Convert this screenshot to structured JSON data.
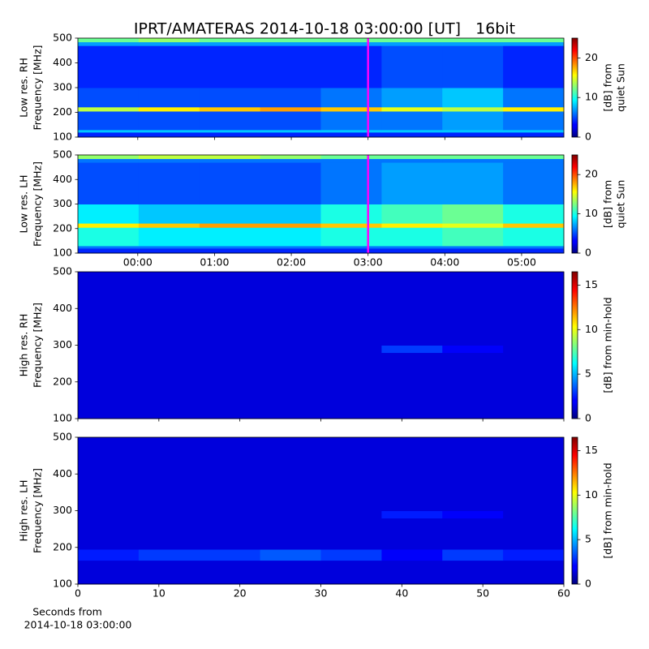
{
  "title": "IPRT/AMATERAS 2014-10-18 03:00:00 [UT]   16bit",
  "chart_data": [
    {
      "type": "heatmap",
      "ylabel": [
        "Low res. RH",
        "Frequency [MHz]"
      ],
      "xlim": [
        -0.78,
        5.55
      ],
      "xticks": [
        0,
        1,
        2,
        3,
        4,
        5
      ],
      "xtick_labels": false,
      "ylim": [
        100,
        500
      ],
      "yticks": [
        100,
        200,
        300,
        400,
        500
      ],
      "y_edges": [
        100,
        120,
        130,
        205,
        222,
        300,
        470,
        485,
        500
      ],
      "z": [
        [
          4,
          4,
          4,
          4,
          4,
          4,
          4,
          4
        ],
        [
          8,
          8,
          8,
          8,
          8,
          8,
          8,
          8
        ],
        [
          5,
          5,
          5,
          5,
          6,
          6,
          7,
          6
        ],
        [
          14,
          16,
          17,
          18,
          17,
          15,
          14,
          16
        ],
        [
          5,
          5,
          5,
          5,
          6,
          7,
          8,
          6
        ],
        [
          4,
          4,
          4,
          4,
          4,
          5,
          5,
          4
        ],
        [
          7,
          7,
          7,
          7,
          7,
          7,
          7,
          7
        ],
        [
          12,
          13,
          12,
          12,
          12,
          12,
          12,
          12
        ]
      ],
      "colormap": "jet",
      "clim": [
        0,
        25
      ],
      "cticks": [
        0,
        10,
        20
      ],
      "clabel": [
        "[dB] from",
        "quiet Sun"
      ],
      "marker_x": 3,
      "marker_color": "#ff00ff"
    },
    {
      "type": "heatmap",
      "ylabel": [
        "Low res. LH",
        "Frequency [MHz]"
      ],
      "xlim": [
        -0.78,
        5.55
      ],
      "xticks": [
        {
          "value": 0,
          "label": "00:00"
        },
        {
          "value": 1,
          "label": "01:00"
        },
        {
          "value": 2,
          "label": "02:00"
        },
        {
          "value": 3,
          "label": "03:00"
        },
        {
          "value": 4,
          "label": "04:00"
        },
        {
          "value": 5,
          "label": "05:00"
        }
      ],
      "ylim": [
        100,
        500
      ],
      "yticks": [
        100,
        200,
        300,
        400,
        500
      ],
      "y_edges": [
        100,
        120,
        130,
        205,
        222,
        300,
        470,
        485,
        500
      ],
      "z": [
        [
          4,
          4,
          4,
          4,
          4,
          4,
          4,
          4
        ],
        [
          6,
          6,
          6,
          6,
          6,
          6,
          6,
          6
        ],
        [
          10,
          9,
          9,
          9,
          10,
          10,
          11,
          10
        ],
        [
          16,
          17,
          18,
          18,
          17,
          16,
          15,
          17
        ],
        [
          9,
          8,
          8,
          8,
          10,
          11,
          12,
          10
        ],
        [
          5,
          5,
          5,
          5,
          6,
          7,
          7,
          6
        ],
        [
          6,
          6,
          6,
          6,
          6,
          6,
          6,
          6
        ],
        [
          13,
          14,
          14,
          13,
          12,
          12,
          12,
          12
        ]
      ],
      "colormap": "jet",
      "clim": [
        0,
        25
      ],
      "cticks": [
        0,
        10,
        20
      ],
      "clabel": [
        "[dB] from",
        "quiet Sun"
      ],
      "marker_x": 3,
      "marker_color": "#ff00ff"
    },
    {
      "type": "heatmap",
      "ylabel": [
        "High res. RH",
        "Frequency [MHz]"
      ],
      "xlim": [
        0,
        60
      ],
      "xticks": [
        0,
        10,
        20,
        30,
        40,
        50,
        60
      ],
      "xtick_labels": false,
      "ylim": [
        100,
        500
      ],
      "yticks": [
        100,
        200,
        300,
        400,
        500
      ],
      "y_edges": [
        100,
        280,
        300,
        500
      ],
      "z": [
        [
          1.5,
          1.5,
          1.5,
          1.5,
          1.5,
          1.5,
          1.5,
          1.5
        ],
        [
          1.5,
          1.5,
          1.5,
          1.5,
          1.5,
          3,
          2,
          1.5
        ],
        [
          1.5,
          1.5,
          1.5,
          1.5,
          1.5,
          1.5,
          1.5,
          1.5
        ]
      ],
      "colormap": "jet",
      "clim": [
        0,
        16.5
      ],
      "cticks": [
        0,
        5,
        10,
        15
      ],
      "clabel": [
        "[dB] from min-hold"
      ]
    },
    {
      "type": "heatmap",
      "ylabel": [
        "High res. LH",
        "Frequency [MHz]"
      ],
      "xlim": [
        0,
        60
      ],
      "xticks": [
        0,
        10,
        20,
        30,
        40,
        50,
        60
      ],
      "xlabel": [
        "Seconds from",
        "2014-10-18 03:00:00"
      ],
      "ylim": [
        100,
        500
      ],
      "yticks": [
        100,
        200,
        300,
        400,
        500
      ],
      "y_edges": [
        100,
        165,
        195,
        280,
        300,
        500
      ],
      "z": [
        [
          1.5,
          1.5,
          1.5,
          1.5,
          1.5,
          1.5,
          1.5,
          1.5
        ],
        [
          2.5,
          3,
          3,
          3.5,
          3,
          2,
          3,
          2.5
        ],
        [
          1.5,
          1.5,
          1.5,
          1.5,
          1.5,
          1.5,
          1.5,
          1.5
        ],
        [
          1.5,
          1.5,
          1.5,
          1.5,
          1.5,
          2.5,
          2,
          1.5
        ],
        [
          1.5,
          1.5,
          1.5,
          1.5,
          1.5,
          1.5,
          1.5,
          1.5
        ]
      ],
      "colormap": "jet",
      "clim": [
        0,
        16.5
      ],
      "cticks": [
        0,
        5,
        10,
        15
      ],
      "clabel": [
        "[dB] from min-hold"
      ]
    }
  ]
}
